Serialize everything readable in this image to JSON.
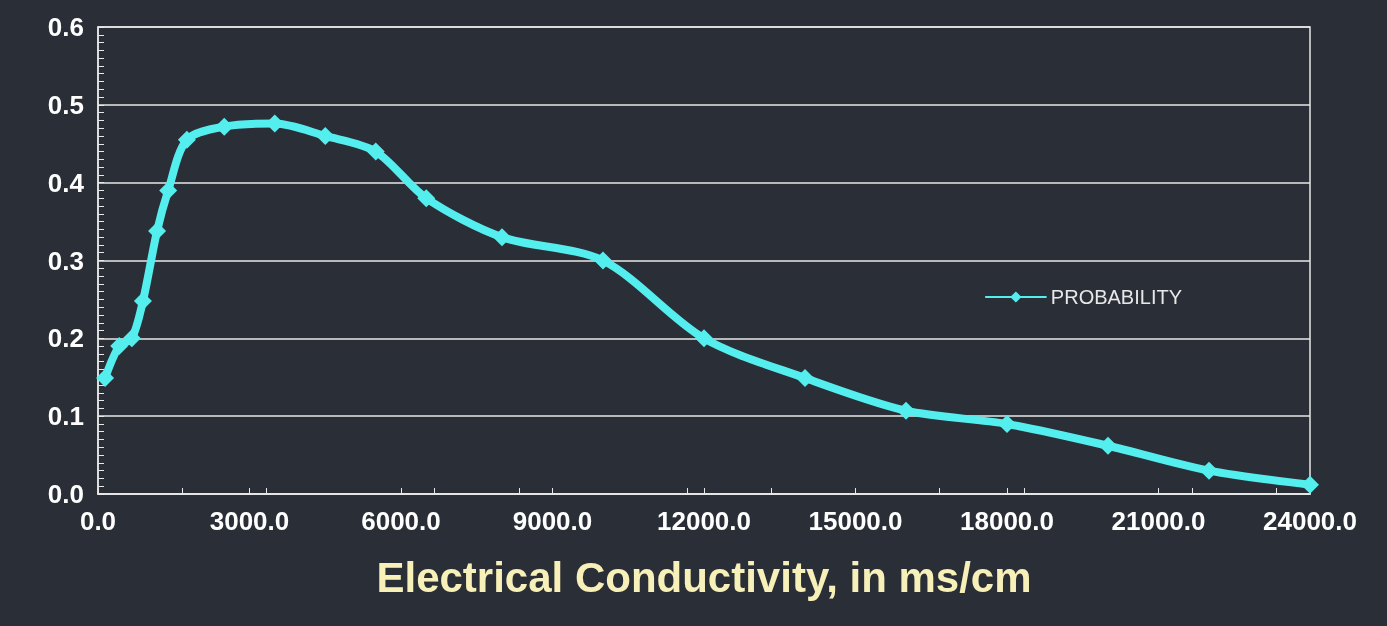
{
  "chart_data": {
    "type": "line",
    "xlabel": "Electrical Conductivity, in ms/cm",
    "series": [
      {
        "name": "PROBABILITY",
        "color": "#55eeee",
        "x": [
          140,
          420,
          670,
          890,
          1170,
          1390,
          1760,
          2500,
          3500,
          4500,
          5500,
          6500,
          8000,
          10000,
          12000,
          14000,
          16000,
          18000,
          20000,
          22000,
          24000
        ],
        "values": [
          0.149,
          0.19,
          0.2,
          0.248,
          0.338,
          0.39,
          0.455,
          0.472,
          0.476,
          0.46,
          0.44,
          0.38,
          0.33,
          0.3,
          0.2,
          0.149,
          0.107,
          0.09,
          0.062,
          0.03,
          0.012
        ]
      }
    ],
    "xlim": [
      0,
      24000
    ],
    "xticks": [
      {
        "value": 0,
        "label": "0.0"
      },
      {
        "value": 3000,
        "label": "3000.0"
      },
      {
        "value": 6000,
        "label": "6000.0"
      },
      {
        "value": 9000,
        "label": "9000.0"
      },
      {
        "value": 12000,
        "label": "12000.0"
      },
      {
        "value": 15000,
        "label": "15000.0"
      },
      {
        "value": 18000,
        "label": "18000.0"
      },
      {
        "value": 21000,
        "label": "21000.0"
      },
      {
        "value": 24000,
        "label": "24000.0"
      }
    ],
    "ylim": [
      0,
      0.6
    ],
    "yticks": [
      {
        "value": 0,
        "label": "0.0"
      },
      0.1,
      0.2,
      0.3,
      0.4,
      0.5,
      0.6
    ],
    "grid": "y",
    "legend": "right",
    "marker": "diamond",
    "line_style": "solid"
  }
}
